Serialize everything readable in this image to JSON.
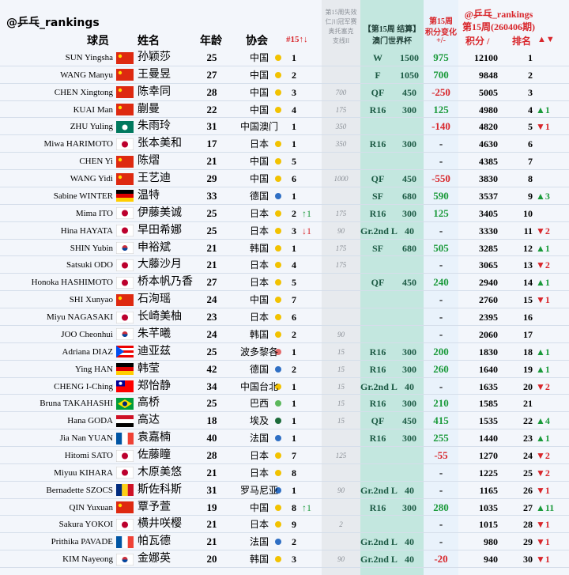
{
  "header": {
    "account": "@乒乓_rankings",
    "columns": {
      "player": "球员",
      "name": "姓名",
      "age": "年龄",
      "association": "协会",
      "assoc_rank": "#15↑↓",
      "dropped": [
        "第15周失效",
        "仁川冠军赛",
        "奥托塞克",
        "支线II"
      ],
      "result": [
        "【第15周 结算】",
        "澳门世界杯"
      ],
      "change": [
        "第15周",
        "积分变化",
        "+/-"
      ],
      "ranking": [
        "@乒乓_rankings",
        "第15周(260406期)"
      ],
      "points": "积分 /",
      "rank": "排名",
      "rank_move": "▲▼"
    }
  },
  "table": {
    "rows": [
      {
        "player": "SUN Yingsha",
        "name": "孙颖莎",
        "age": "25",
        "association": "中国",
        "assoc_rank": "1",
        "result": "W",
        "result_points": "1500",
        "change": "975",
        "points": "12100",
        "rank": "1"
      },
      {
        "player": "WANG Manyu",
        "name": "王曼昱",
        "age": "27",
        "association": "中国",
        "assoc_rank": "2",
        "result": "F",
        "result_points": "1050",
        "change": "700",
        "points": "9848",
        "rank": "2"
      },
      {
        "player": "CHEN Xingtong",
        "name": "陈幸同",
        "age": "28",
        "association": "中国",
        "assoc_rank": "3",
        "dropped": "700",
        "result": "QF",
        "result_points": "450",
        "change": "-250",
        "points": "5005",
        "rank": "3"
      },
      {
        "player": "KUAI Man",
        "name": "蒯曼",
        "age": "22",
        "association": "中国",
        "assoc_rank": "4",
        "dropped": "175",
        "result": "R16",
        "result_points": "300",
        "change": "125",
        "points": "4980",
        "rank": "4",
        "rank_move": "▲1"
      },
      {
        "player": "ZHU Yuling",
        "name": "朱雨玲",
        "age": "31",
        "association": "中国澳门",
        "assoc_rank": "1",
        "dropped": "350",
        "change": "-140",
        "points": "4820",
        "rank": "5",
        "rank_move": "▼1"
      },
      {
        "player": "Miwa HARIMOTO",
        "name": "张本美和",
        "age": "17",
        "association": "日本",
        "assoc_rank": "1",
        "dropped": "350",
        "result": "R16",
        "result_points": "300",
        "change": "-",
        "points": "4630",
        "rank": "6"
      },
      {
        "player": "CHEN Yi",
        "name": "陈熠",
        "age": "21",
        "association": "中国",
        "assoc_rank": "5",
        "change": "-",
        "points": "4385",
        "rank": "7"
      },
      {
        "player": "WANG Yidi",
        "name": "王艺迪",
        "age": "29",
        "association": "中国",
        "assoc_rank": "6",
        "dropped": "1000",
        "result": "QF",
        "result_points": "450",
        "change": "-550",
        "points": "3830",
        "rank": "8"
      },
      {
        "player": "Sabine WINTER",
        "name": "温特",
        "age": "33",
        "association": "德国",
        "assoc_rank": "1",
        "result": "SF",
        "result_points": "680",
        "change": "590",
        "points": "3537",
        "rank": "9",
        "rank_move": "▲3"
      },
      {
        "player": "Mima ITO",
        "name": "伊藤美诚",
        "age": "25",
        "association": "日本",
        "assoc_rank": "2",
        "assoc_move": "↑1",
        "dropped": "175",
        "result": "R16",
        "result_points": "300",
        "change": "125",
        "points": "3405",
        "rank": "10"
      },
      {
        "player": "Hina HAYATA",
        "name": "早田希娜",
        "age": "25",
        "association": "日本",
        "assoc_rank": "3",
        "assoc_move": "↓1",
        "dropped": "90",
        "result": "Gr.2nd L",
        "result_points": "40",
        "change": "-",
        "points": "3330",
        "rank": "11",
        "rank_move": "▼2"
      },
      {
        "player": "SHIN Yubin",
        "name": "申裕斌",
        "age": "21",
        "association": "韩国",
        "assoc_rank": "1",
        "dropped": "175",
        "result": "SF",
        "result_points": "680",
        "change": "505",
        "points": "3285",
        "rank": "12",
        "rank_move": "▲1"
      },
      {
        "player": "Satsuki ODO",
        "name": "大藤沙月",
        "age": "21",
        "association": "日本",
        "assoc_rank": "4",
        "dropped": "175",
        "change": "-",
        "points": "3065",
        "rank": "13",
        "rank_move": "▼2"
      },
      {
        "player": "Honoka HASHIMOTO",
        "name": "桥本帆乃香",
        "age": "27",
        "association": "日本",
        "assoc_rank": "5",
        "result": "QF",
        "result_points": "450",
        "change": "240",
        "points": "2940",
        "rank": "14",
        "rank_move": "▲1"
      },
      {
        "player": "SHI Xunyao",
        "name": "石洵瑶",
        "age": "24",
        "association": "中国",
        "assoc_rank": "7",
        "change": "-",
        "points": "2760",
        "rank": "15",
        "rank_move": "▼1"
      },
      {
        "player": "Miyu NAGASAKI",
        "name": "长崎美柚",
        "age": "23",
        "association": "日本",
        "assoc_rank": "6",
        "change": "-",
        "points": "2395",
        "rank": "16"
      },
      {
        "player": "JOO Cheonhui",
        "name": "朱芊曦",
        "age": "24",
        "association": "韩国",
        "assoc_rank": "2",
        "dropped": "90",
        "change": "-",
        "points": "2060",
        "rank": "17"
      },
      {
        "player": "Adriana DIAZ",
        "name": "迪亚兹",
        "age": "25",
        "association": "波多黎各",
        "assoc_rank": "1",
        "dropped": "15",
        "result": "R16",
        "result_points": "300",
        "change": "200",
        "points": "1830",
        "rank": "18",
        "rank_move": "▲1"
      },
      {
        "player": "Ying HAN",
        "name": "韩莹",
        "age": "42",
        "association": "德国",
        "assoc_rank": "2",
        "dropped": "15",
        "result": "R16",
        "result_points": "300",
        "change": "260",
        "points": "1640",
        "rank": "19",
        "rank_move": "▲1"
      },
      {
        "player": "CHENG I-Ching",
        "name": "郑怡静",
        "age": "34",
        "association": "中国台北",
        "assoc_rank": "1",
        "dropped": "15",
        "result": "Gr.2nd L",
        "result_points": "40",
        "change": "-",
        "points": "1635",
        "rank": "20",
        "rank_move": "▼2"
      },
      {
        "player": "Bruna TAKAHASHI",
        "name": "高桥",
        "age": "25",
        "association": "巴西",
        "assoc_rank": "1",
        "dropped": "15",
        "result": "R16",
        "result_points": "300",
        "change": "210",
        "points": "1585",
        "rank": "21"
      },
      {
        "player": "Hana GODA",
        "name": "高达",
        "age": "18",
        "association": "埃及",
        "assoc_rank": "1",
        "dropped": "15",
        "result": "QF",
        "result_points": "450",
        "change": "415",
        "points": "1535",
        "rank": "22",
        "rank_move": "▲4"
      },
      {
        "player": "Jia Nan YUAN",
        "name": "袁嘉楠",
        "age": "40",
        "association": "法国",
        "assoc_rank": "1",
        "result": "R16",
        "result_points": "300",
        "change": "255",
        "points": "1440",
        "rank": "23",
        "rank_move": "▲1"
      },
      {
        "player": "Hitomi SATO",
        "name": "佐藤瞳",
        "age": "28",
        "association": "日本",
        "assoc_rank": "7",
        "dropped": "125",
        "change": "-55",
        "points": "1270",
        "rank": "24",
        "rank_move": "▼2"
      },
      {
        "player": "Miyuu KIHARA",
        "name": "木原美悠",
        "age": "21",
        "association": "日本",
        "assoc_rank": "8",
        "change": "-",
        "points": "1225",
        "rank": "25",
        "rank_move": "▼2"
      },
      {
        "player": "Bernadette SZOCS",
        "name": "斯佐科斯",
        "age": "31",
        "association": "罗马尼亚",
        "assoc_rank": "1",
        "dropped": "90",
        "result": "Gr.2nd L",
        "result_points": "40",
        "change": "-",
        "points": "1165",
        "rank": "26",
        "rank_move": "▼1"
      },
      {
        "player": "QIN Yuxuan",
        "name": "覃予萱",
        "age": "19",
        "association": "中国",
        "assoc_rank": "8",
        "assoc_move": "↑1",
        "result": "R16",
        "result_points": "300",
        "change": "280",
        "points": "1035",
        "rank": "27",
        "rank_move": "▲11"
      },
      {
        "player": "Sakura YOKOI",
        "name": "横井咲樱",
        "age": "21",
        "association": "日本",
        "assoc_rank": "9",
        "dropped": "2",
        "change": "-",
        "points": "1015",
        "rank": "28",
        "rank_move": "▼1"
      },
      {
        "player": "Prithika PAVADE",
        "name": "帕瓦德",
        "age": "21",
        "association": "法国",
        "assoc_rank": "2",
        "result": "Gr.2nd L",
        "result_points": "40",
        "change": "-",
        "points": "980",
        "rank": "29",
        "rank_move": "▼1"
      },
      {
        "player": "KIM Nayeong",
        "name": "金娜英",
        "age": "20",
        "association": "韩国",
        "assoc_rank": "3",
        "dropped": "90",
        "result": "Gr.2nd L",
        "result_points": "40",
        "change": "-20",
        "points": "940",
        "rank": "30",
        "rank_move": "▼1"
      }
    ]
  }
}
